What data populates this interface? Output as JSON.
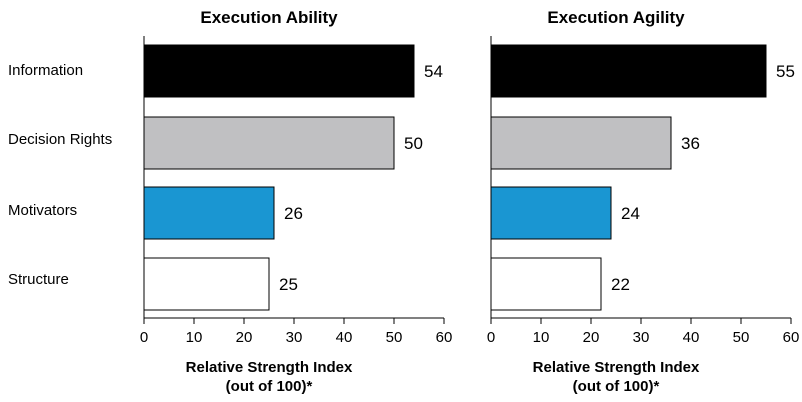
{
  "chart_data": [
    {
      "type": "bar",
      "orientation": "horizontal",
      "title": "Execution Ability",
      "categories": [
        "Information",
        "Decision Rights",
        "Motivators",
        "Structure"
      ],
      "values": [
        54,
        50,
        26,
        25
      ],
      "xlabel_line1": "Relative Strength Index",
      "xlabel_line2": "(out of 100)*",
      "xlim": [
        0,
        60
      ],
      "ticks": [
        0,
        10,
        20,
        30,
        40,
        50,
        60
      ],
      "bar_colors": [
        "#000000",
        "#c0c0c2",
        "#1a96d2",
        "#ffffff"
      ]
    },
    {
      "type": "bar",
      "orientation": "horizontal",
      "title": "Execution Agility",
      "categories": [
        "Information",
        "Decision Rights",
        "Motivators",
        "Structure"
      ],
      "values": [
        55,
        36,
        24,
        22
      ],
      "xlabel_line1": "Relative Strength Index",
      "xlabel_line2": "(out of 100)*",
      "xlim": [
        0,
        60
      ],
      "ticks": [
        0,
        10,
        20,
        30,
        40,
        50,
        60
      ],
      "bar_colors": [
        "#000000",
        "#c0c0c2",
        "#1a96d2",
        "#ffffff"
      ]
    }
  ]
}
